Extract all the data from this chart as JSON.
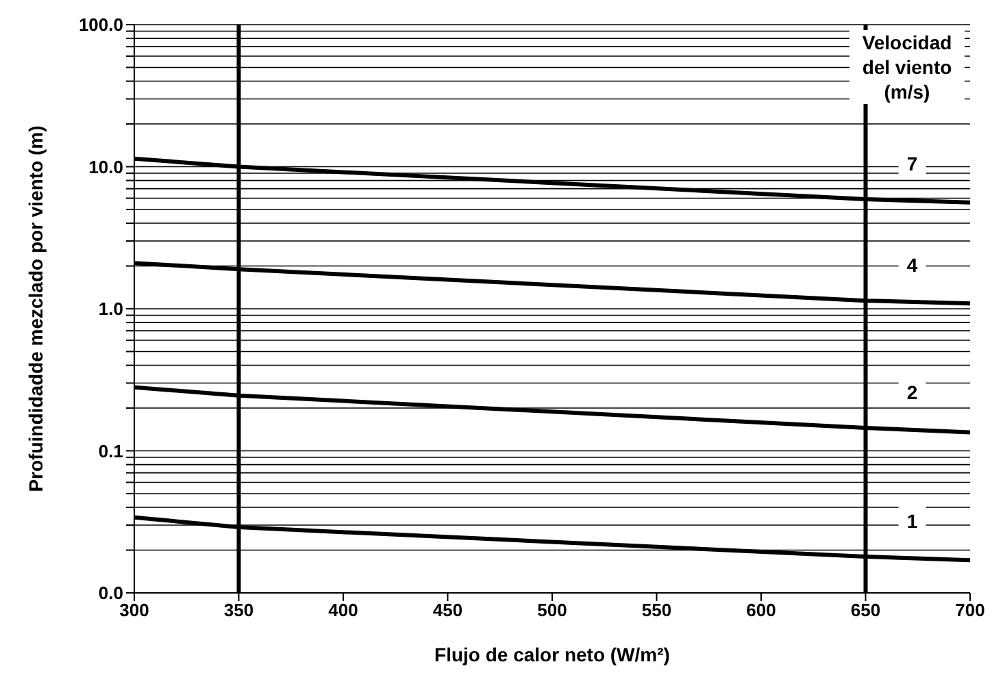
{
  "chart_data": {
    "type": "line",
    "xlabel": "Flujo de calor neto (W/m²)",
    "ylabel": "Profuindidadde mezclado por viento (m)",
    "legend_title": "Velocidad del viento (m/s)",
    "x": [
      300,
      350,
      650,
      700
    ],
    "series": [
      {
        "name": "7",
        "color": "#000000",
        "values": [
          11.4,
          10,
          5.9,
          5.6
        ]
      },
      {
        "name": "4",
        "color": "#000000",
        "values": [
          2.1,
          1.9,
          1.14,
          1.09
        ]
      },
      {
        "name": "2",
        "color": "#000000",
        "values": [
          0.28,
          0.245,
          0.145,
          0.135
        ]
      },
      {
        "name": "1",
        "color": "#000000",
        "values": [
          0.034,
          0.029,
          0.018,
          0.017
        ]
      }
    ],
    "log": "y",
    "xlim": [
      300,
      700
    ],
    "xticks": [
      300,
      350,
      400,
      450,
      500,
      550,
      600,
      650,
      700
    ],
    "ylim": [
      0.01,
      100
    ],
    "yticks": [
      {
        "value": 0.01,
        "label": "0.0"
      },
      {
        "value": 0.02,
        "label": null
      },
      {
        "value": 0.03,
        "label": null
      },
      {
        "value": 0.04,
        "label": null
      },
      {
        "value": 0.05,
        "label": null
      },
      {
        "value": 0.06,
        "label": null
      },
      {
        "value": 0.07,
        "label": null
      },
      {
        "value": 0.08,
        "label": null
      },
      {
        "value": 0.09,
        "label": null
      },
      {
        "value": 0.1,
        "label": "0.1"
      },
      {
        "value": 0.2,
        "label": null
      },
      {
        "value": 0.3,
        "label": null
      },
      {
        "value": 0.4,
        "label": null
      },
      {
        "value": 0.5,
        "label": null
      },
      {
        "value": 0.6,
        "label": null
      },
      {
        "value": 0.7,
        "label": null
      },
      {
        "value": 0.8,
        "label": null
      },
      {
        "value": 0.9,
        "label": null
      },
      {
        "value": 1,
        "label": "1.0"
      },
      {
        "value": 2,
        "label": null
      },
      {
        "value": 3,
        "label": null
      },
      {
        "value": 4,
        "label": null
      },
      {
        "value": 5,
        "label": null
      },
      {
        "value": 6,
        "label": null
      },
      {
        "value": 7,
        "label": null
      },
      {
        "value": 8,
        "label": null
      },
      {
        "value": 9,
        "label": null
      },
      {
        "value": 10,
        "label": "10.0"
      },
      {
        "value": 20,
        "label": null
      },
      {
        "value": 30,
        "label": null
      },
      {
        "value": 40,
        "label": null
      },
      {
        "value": 50,
        "label": null
      },
      {
        "value": 60,
        "label": null
      },
      {
        "value": 70,
        "label": null
      },
      {
        "value": 80,
        "label": null
      },
      {
        "value": 90,
        "label": null
      },
      {
        "value": 100,
        "label": "100.0"
      }
    ],
    "grid": "y",
    "marker": "none",
    "line_style": "solid",
    "ref_lines": [
      {
        "axis": "x",
        "value": 350,
        "color": "#000000"
      },
      {
        "axis": "x",
        "value": 650,
        "color": "#000000"
      }
    ]
  }
}
